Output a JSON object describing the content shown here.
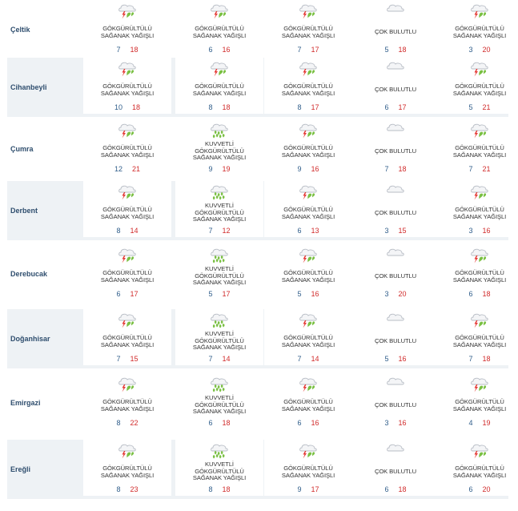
{
  "colors": {
    "row_shade": "#eef2f5",
    "min_temp": "#2f5d8a",
    "max_temp": "#d12b2b",
    "district": "#2f4e6e"
  },
  "rows": [
    {
      "district": "Çeltik",
      "days": [
        {
          "icon": "thunderstorm-icon",
          "condition": [
            "GÖKGÜRÜLTÜLÜ",
            "SAĞANAK YAĞIŞLI"
          ],
          "min": "7",
          "max": "18"
        },
        {
          "icon": "thunderstorm-icon",
          "condition": [
            "GÖKGÜRÜLTÜLÜ",
            "SAĞANAK YAĞIŞLI"
          ],
          "min": "6",
          "max": "16"
        },
        {
          "icon": "thunderstorm-icon",
          "condition": [
            "GÖKGÜRÜLTÜLÜ",
            "SAĞANAK YAĞIŞLI"
          ],
          "min": "7",
          "max": "17"
        },
        {
          "icon": "cloud-icon",
          "condition": [
            "ÇOK BULUTLU"
          ],
          "min": "5",
          "max": "18"
        },
        {
          "icon": "thunderstorm-icon",
          "condition": [
            "GÖKGÜRÜLTÜLÜ",
            "SAĞANAK YAĞIŞLI"
          ],
          "min": "3",
          "max": "20"
        }
      ]
    },
    {
      "district": "Cihanbeyli",
      "days": [
        {
          "icon": "thunderstorm-icon",
          "condition": [
            "GÖKGÜRÜLTÜLÜ",
            "SAĞANAK YAĞIŞLI"
          ],
          "min": "10",
          "max": "18"
        },
        {
          "icon": "thunderstorm-icon",
          "condition": [
            "GÖKGÜRÜLTÜLÜ",
            "SAĞANAK YAĞIŞLI"
          ],
          "min": "8",
          "max": "18"
        },
        {
          "icon": "thunderstorm-icon",
          "condition": [
            "GÖKGÜRÜLTÜLÜ",
            "SAĞANAK YAĞIŞLI"
          ],
          "min": "8",
          "max": "17"
        },
        {
          "icon": "cloud-icon",
          "condition": [
            "ÇOK BULUTLU"
          ],
          "min": "6",
          "max": "17"
        },
        {
          "icon": "thunderstorm-icon",
          "condition": [
            "GÖKGÜRÜLTÜLÜ",
            "SAĞANAK YAĞIŞLI"
          ],
          "min": "5",
          "max": "21"
        }
      ]
    },
    {
      "district": "Çumra",
      "days": [
        {
          "icon": "thunderstorm-icon",
          "condition": [
            "GÖKGÜRÜLTÜLÜ",
            "SAĞANAK YAĞIŞLI"
          ],
          "min": "12",
          "max": "21"
        },
        {
          "icon": "heavy-rain-icon",
          "condition": [
            "KUVVETLİ",
            "GÖKGÜRÜLTÜLÜ",
            "SAĞANAK YAĞIŞLI"
          ],
          "min": "9",
          "max": "19"
        },
        {
          "icon": "thunderstorm-icon",
          "condition": [
            "GÖKGÜRÜLTÜLÜ",
            "SAĞANAK YAĞIŞLI"
          ],
          "min": "9",
          "max": "16"
        },
        {
          "icon": "cloud-icon",
          "condition": [
            "ÇOK BULUTLU"
          ],
          "min": "7",
          "max": "18"
        },
        {
          "icon": "thunderstorm-icon",
          "condition": [
            "GÖKGÜRÜLTÜLÜ",
            "SAĞANAK YAĞIŞLI"
          ],
          "min": "7",
          "max": "21"
        }
      ]
    },
    {
      "district": "Derbent",
      "days": [
        {
          "icon": "thunderstorm-icon",
          "condition": [
            "GÖKGÜRÜLTÜLÜ",
            "SAĞANAK YAĞIŞLI"
          ],
          "min": "8",
          "max": "14"
        },
        {
          "icon": "heavy-rain-icon",
          "condition": [
            "KUVVETLİ",
            "GÖKGÜRÜLTÜLÜ",
            "SAĞANAK YAĞIŞLI"
          ],
          "min": "7",
          "max": "12"
        },
        {
          "icon": "thunderstorm-icon",
          "condition": [
            "GÖKGÜRÜLTÜLÜ",
            "SAĞANAK YAĞIŞLI"
          ],
          "min": "6",
          "max": "13"
        },
        {
          "icon": "cloud-icon",
          "condition": [
            "ÇOK BULUTLU"
          ],
          "min": "3",
          "max": "15"
        },
        {
          "icon": "thunderstorm-icon",
          "condition": [
            "GÖKGÜRÜLTÜLÜ",
            "SAĞANAK YAĞIŞLI"
          ],
          "min": "3",
          "max": "16"
        }
      ]
    },
    {
      "district": "Derebucak",
      "days": [
        {
          "icon": "thunderstorm-icon",
          "condition": [
            "GÖKGÜRÜLTÜLÜ",
            "SAĞANAK YAĞIŞLI"
          ],
          "min": "6",
          "max": "17"
        },
        {
          "icon": "heavy-rain-icon",
          "condition": [
            "KUVVETLİ",
            "GÖKGÜRÜLTÜLÜ",
            "SAĞANAK YAĞIŞLI"
          ],
          "min": "5",
          "max": "17"
        },
        {
          "icon": "thunderstorm-icon",
          "condition": [
            "GÖKGÜRÜLTÜLÜ",
            "SAĞANAK YAĞIŞLI"
          ],
          "min": "5",
          "max": "16"
        },
        {
          "icon": "cloud-icon",
          "condition": [
            "ÇOK BULUTLU"
          ],
          "min": "3",
          "max": "20"
        },
        {
          "icon": "thunderstorm-icon",
          "condition": [
            "GÖKGÜRÜLTÜLÜ",
            "SAĞANAK YAĞIŞLI"
          ],
          "min": "6",
          "max": "18"
        }
      ]
    },
    {
      "district": "Doğanhisar",
      "days": [
        {
          "icon": "thunderstorm-icon",
          "condition": [
            "GÖKGÜRÜLTÜLÜ",
            "SAĞANAK YAĞIŞLI"
          ],
          "min": "7",
          "max": "15"
        },
        {
          "icon": "heavy-rain-icon",
          "condition": [
            "KUVVETLİ",
            "GÖKGÜRÜLTÜLÜ",
            "SAĞANAK YAĞIŞLI"
          ],
          "min": "7",
          "max": "14"
        },
        {
          "icon": "thunderstorm-icon",
          "condition": [
            "GÖKGÜRÜLTÜLÜ",
            "SAĞANAK YAĞIŞLI"
          ],
          "min": "7",
          "max": "14"
        },
        {
          "icon": "cloud-icon",
          "condition": [
            "ÇOK BULUTLU"
          ],
          "min": "5",
          "max": "16"
        },
        {
          "icon": "thunderstorm-icon",
          "condition": [
            "GÖKGÜRÜLTÜLÜ",
            "SAĞANAK YAĞIŞLI"
          ],
          "min": "7",
          "max": "18"
        }
      ]
    },
    {
      "district": "Emirgazi",
      "days": [
        {
          "icon": "thunderstorm-icon",
          "condition": [
            "GÖKGÜRÜLTÜLÜ",
            "SAĞANAK YAĞIŞLI"
          ],
          "min": "8",
          "max": "22"
        },
        {
          "icon": "heavy-rain-icon",
          "condition": [
            "KUVVETLİ",
            "GÖKGÜRÜLTÜLÜ",
            "SAĞANAK YAĞIŞLI"
          ],
          "min": "6",
          "max": "18"
        },
        {
          "icon": "thunderstorm-icon",
          "condition": [
            "GÖKGÜRÜLTÜLÜ",
            "SAĞANAK YAĞIŞLI"
          ],
          "min": "6",
          "max": "16"
        },
        {
          "icon": "cloud-icon",
          "condition": [
            "ÇOK BULUTLU"
          ],
          "min": "3",
          "max": "16"
        },
        {
          "icon": "thunderstorm-icon",
          "condition": [
            "GÖKGÜRÜLTÜLÜ",
            "SAĞANAK YAĞIŞLI"
          ],
          "min": "4",
          "max": "19"
        }
      ]
    },
    {
      "district": "Ereğli",
      "days": [
        {
          "icon": "thunderstorm-icon",
          "condition": [
            "GÖKGÜRÜLTÜLÜ",
            "SAĞANAK YAĞIŞLI"
          ],
          "min": "8",
          "max": "23"
        },
        {
          "icon": "heavy-rain-icon",
          "condition": [
            "KUVVETLİ",
            "GÖKGÜRÜLTÜLÜ",
            "SAĞANAK YAĞIŞLI"
          ],
          "min": "8",
          "max": "18"
        },
        {
          "icon": "thunderstorm-icon",
          "condition": [
            "GÖKGÜRÜLTÜLÜ",
            "SAĞANAK YAĞIŞLI"
          ],
          "min": "9",
          "max": "17"
        },
        {
          "icon": "cloud-icon",
          "condition": [
            "ÇOK BULUTLU"
          ],
          "min": "6",
          "max": "18"
        },
        {
          "icon": "thunderstorm-icon",
          "condition": [
            "GÖKGÜRÜLTÜLÜ",
            "SAĞANAK YAĞIŞLI"
          ],
          "min": "6",
          "max": "20"
        }
      ]
    }
  ]
}
